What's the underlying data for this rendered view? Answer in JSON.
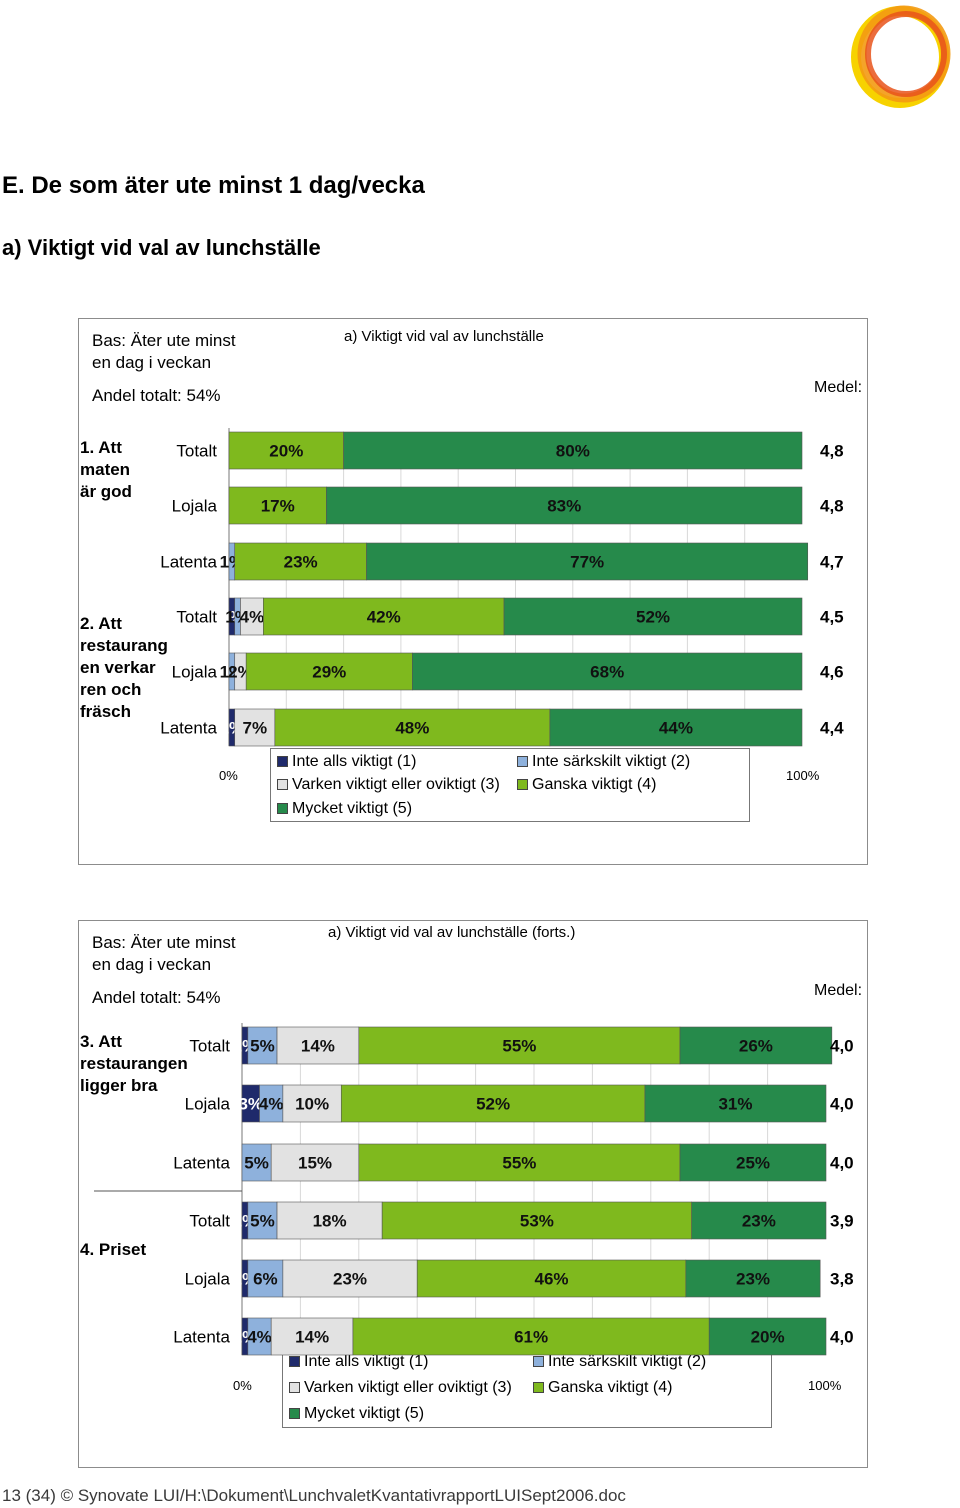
{
  "heading": "E. De som äter ute minst 1 dag/vecka",
  "subheading": "a) Viktigt vid val av lunchställe",
  "footer": "13 (34) © Synovate LUI/H:\\Dokument\\LunchvaletKvantativrapportLUISept2006.doc",
  "colors": {
    "c1": "#1f2a6b",
    "c2": "#8eb1dc",
    "c3": "#e2e2e2",
    "c4": "#7fb91e",
    "c5": "#268a4b"
  },
  "legend": [
    {
      "label": "Inte alls viktigt (1)",
      "color": "#1f2a6b"
    },
    {
      "label": "Inte särkskilt viktigt (2)",
      "color": "#8eb1dc"
    },
    {
      "label": "Varken viktigt eller oviktigt (3)",
      "color": "#e2e2e2"
    },
    {
      "label": "Ganska viktigt (4)",
      "color": "#7fb91e"
    },
    {
      "label": "Mycket viktigt (5)",
      "color": "#268a4b"
    }
  ],
  "panels": [
    {
      "base_line1": "Bas: Äter ute minst",
      "base_line2": "en dag i veckan",
      "andel": "Andel totalt: 54%",
      "chart_title": "a) Viktigt vid val av lunchställe",
      "medel_label": "Medel:",
      "axis_min": "0%",
      "axis_max": "100%",
      "categories": [
        {
          "label_lines": [
            "1. Att",
            "maten",
            "är god"
          ]
        },
        {
          "label_lines": [
            "2. Att",
            "restaurang",
            "en verkar",
            "ren och",
            "fräsch"
          ]
        }
      ]
    },
    {
      "base_line1": "Bas: Äter ute minst",
      "base_line2": "en dag i veckan",
      "andel": "Andel totalt: 54%",
      "chart_title": "a) Viktigt vid val av lunchställe (forts.)",
      "medel_label": "Medel:",
      "axis_min": "0%",
      "axis_max": "100%",
      "categories": [
        {
          "label_lines": [
            "3. Att",
            "restaurangen",
            "ligger bra"
          ]
        },
        {
          "label_lines": [
            "4. Priset"
          ]
        }
      ]
    }
  ],
  "chart_data": [
    {
      "type": "bar",
      "orientation": "horizontal",
      "stacked": true,
      "title": "a) Viktigt vid val av lunchställe",
      "xlim": [
        0,
        100
      ],
      "legend_position": "bottom",
      "series_names": [
        "Inte alls viktigt (1)",
        "Inte särkskilt viktigt (2)",
        "Varken viktigt eller oviktigt (3)",
        "Ganska viktigt (4)",
        "Mycket viktigt (5)"
      ],
      "rows": [
        {
          "category": "1. Att maten är god",
          "group": "Totalt",
          "values": [
            0,
            0,
            0,
            20,
            80
          ],
          "labels": [
            "",
            "",
            "",
            "20%",
            "80%"
          ],
          "medel": "4,8"
        },
        {
          "category": "1. Att maten är god",
          "group": "Lojala",
          "values": [
            0,
            0,
            0,
            17,
            83
          ],
          "labels": [
            "",
            "",
            "",
            "17%",
            "83%"
          ],
          "medel": "4,8"
        },
        {
          "category": "1. Att maten är god",
          "group": "Latenta",
          "values": [
            0,
            1,
            0,
            23,
            77
          ],
          "labels": [
            "",
            "1%",
            "",
            "23%",
            "77%"
          ],
          "medel": "4,7"
        },
        {
          "category": "2. Att restaurangen verkar ren och fräsch",
          "group": "Totalt",
          "values": [
            1,
            1,
            4,
            42,
            52
          ],
          "labels": [
            "1%",
            "1%",
            "4%",
            "42%",
            "52%"
          ],
          "medel": "4,5"
        },
        {
          "category": "2. Att restaurangen verkar ren och fräsch",
          "group": "Lojala",
          "values": [
            0,
            1,
            2,
            29,
            68
          ],
          "labels": [
            "",
            "1%",
            "2%",
            "29%",
            "68%"
          ],
          "medel": "4,6"
        },
        {
          "category": "2. Att restaurangen verkar ren och fräsch",
          "group": "Latenta",
          "values": [
            1,
            0,
            7,
            48,
            44
          ],
          "labels": [
            "1%",
            "",
            "7%",
            "48%",
            "44%"
          ],
          "medel": "4,4"
        }
      ]
    },
    {
      "type": "bar",
      "orientation": "horizontal",
      "stacked": true,
      "title": "a) Viktigt vid val av lunchställe (forts.)",
      "xlim": [
        0,
        100
      ],
      "legend_position": "bottom",
      "series_names": [
        "Inte alls viktigt (1)",
        "Inte särkskilt viktigt (2)",
        "Varken viktigt eller oviktigt (3)",
        "Ganska viktigt (4)",
        "Mycket viktigt (5)"
      ],
      "rows": [
        {
          "category": "3. Att restaurangen ligger bra",
          "group": "Totalt",
          "values": [
            1,
            5,
            14,
            55,
            26
          ],
          "labels": [
            "1%",
            "5%",
            "14%",
            "55%",
            "26%"
          ],
          "medel": "4,0"
        },
        {
          "category": "3. Att restaurangen ligger bra",
          "group": "Lojala",
          "values": [
            3,
            4,
            10,
            52,
            31
          ],
          "labels": [
            "3%",
            "4%",
            "10%",
            "52%",
            "31%"
          ],
          "medel": "4,0"
        },
        {
          "category": "3. Att restaurangen ligger bra",
          "group": "Latenta",
          "values": [
            0,
            5,
            15,
            55,
            25
          ],
          "labels": [
            "",
            "5%",
            "15%",
            "55%",
            "25%"
          ],
          "medel": "4,0"
        },
        {
          "category": "4. Priset",
          "group": "Totalt",
          "values": [
            1,
            5,
            18,
            53,
            23
          ],
          "labels": [
            "1%",
            "5%",
            "18%",
            "53%",
            "23%"
          ],
          "medel": "3,9"
        },
        {
          "category": "4. Priset",
          "group": "Lojala",
          "values": [
            1,
            6,
            23,
            46,
            23
          ],
          "labels": [
            "1%",
            "6%",
            "23%",
            "46%",
            "23%"
          ],
          "medel": "3,8"
        },
        {
          "category": "4. Priset",
          "group": "Latenta",
          "values": [
            1,
            4,
            14,
            61,
            20
          ],
          "labels": [
            "1%",
            "4%",
            "14%",
            "61%",
            "20%"
          ],
          "medel": "4,0"
        }
      ]
    }
  ]
}
